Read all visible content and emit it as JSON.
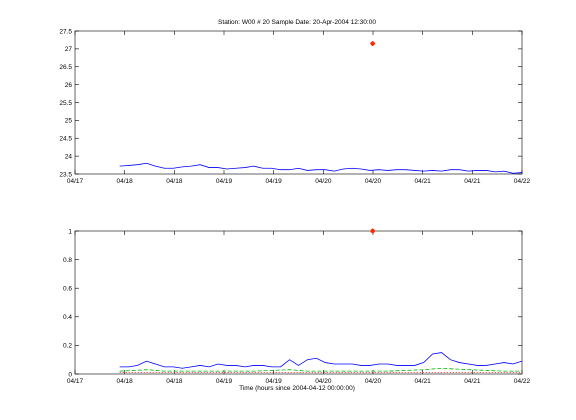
{
  "chart_data": [
    {
      "type": "line",
      "title": "Station: W00 # 20  Sample Date: 20-Apr-2004 12:30:00",
      "ylabel": "",
      "xlabel": "",
      "xlim": [
        0,
        5
      ],
      "ylim": [
        23.5,
        27.5
      ],
      "xtick_labels": [
        "04/17",
        "04/18",
        "04/18",
        "04/19",
        "04/19",
        "04/20",
        "04/20",
        "04/21",
        "04/21",
        "04/22"
      ],
      "ytick_labels": [
        "23.5",
        "24",
        "24.5",
        "25",
        "25.5",
        "26",
        "26.5",
        "27",
        "27.5"
      ],
      "yticks": [
        23.5,
        24,
        24.5,
        25,
        25.5,
        26,
        26.5,
        27,
        27.5
      ],
      "series": [
        {
          "color": "#0000ff",
          "style": "solid",
          "x": [
            0.5,
            0.6,
            0.7,
            0.8,
            0.9,
            1.0,
            1.1,
            1.2,
            1.3,
            1.4,
            1.5,
            1.6,
            1.7,
            1.8,
            1.9,
            2.0,
            2.1,
            2.2,
            2.3,
            2.4,
            2.5,
            2.6,
            2.7,
            2.8,
            2.9,
            3.0,
            3.1,
            3.2,
            3.3,
            3.4,
            3.5,
            3.6,
            3.7,
            3.8,
            3.9,
            4.0,
            4.1,
            4.2,
            4.3,
            4.4,
            4.5,
            4.6,
            4.7,
            4.8,
            4.9,
            5.0
          ],
          "y": [
            23.72,
            23.74,
            23.76,
            23.8,
            23.72,
            23.66,
            23.66,
            23.7,
            23.72,
            23.76,
            23.68,
            23.68,
            23.64,
            23.66,
            23.68,
            23.72,
            23.66,
            23.66,
            23.62,
            23.62,
            23.66,
            23.6,
            23.62,
            23.62,
            23.58,
            23.64,
            23.66,
            23.64,
            23.6,
            23.62,
            23.6,
            23.62,
            23.62,
            23.6,
            23.58,
            23.6,
            23.58,
            23.62,
            23.62,
            23.58,
            23.6,
            23.6,
            23.56,
            23.58,
            23.52,
            23.54
          ]
        }
      ],
      "markers": [
        {
          "x": 3.33,
          "y": 27.15,
          "color": "#ff2a00"
        }
      ]
    },
    {
      "type": "line",
      "title": "",
      "ylabel": "",
      "xlabel": "Time (hours since 2004-04-12 00:00:00)",
      "xlim": [
        0,
        5
      ],
      "ylim": [
        0,
        1
      ],
      "xtick_labels": [
        "04/17",
        "04/18",
        "04/18",
        "04/19",
        "04/19",
        "04/20",
        "04/20",
        "04/21",
        "04/21",
        "04/22"
      ],
      "ytick_labels": [
        "0",
        "0.2",
        "0.4",
        "0.6",
        "0.8",
        "1"
      ],
      "yticks": [
        0,
        0.2,
        0.4,
        0.6,
        0.8,
        1
      ],
      "series": [
        {
          "color": "#0000ff",
          "style": "solid",
          "x": [
            0.5,
            0.6,
            0.7,
            0.8,
            0.9,
            1.0,
            1.1,
            1.2,
            1.3,
            1.4,
            1.5,
            1.6,
            1.7,
            1.8,
            1.9,
            2.0,
            2.1,
            2.2,
            2.3,
            2.4,
            2.5,
            2.6,
            2.7,
            2.8,
            2.9,
            3.0,
            3.1,
            3.2,
            3.3,
            3.4,
            3.5,
            3.6,
            3.7,
            3.8,
            3.9,
            4.0,
            4.1,
            4.2,
            4.3,
            4.4,
            4.5,
            4.6,
            4.7,
            4.8,
            4.9,
            5.0
          ],
          "y": [
            0.05,
            0.05,
            0.06,
            0.09,
            0.07,
            0.05,
            0.05,
            0.04,
            0.05,
            0.06,
            0.05,
            0.07,
            0.06,
            0.06,
            0.05,
            0.06,
            0.06,
            0.05,
            0.05,
            0.1,
            0.06,
            0.1,
            0.11,
            0.08,
            0.07,
            0.07,
            0.07,
            0.06,
            0.06,
            0.07,
            0.07,
            0.06,
            0.06,
            0.06,
            0.08,
            0.14,
            0.15,
            0.1,
            0.08,
            0.07,
            0.06,
            0.06,
            0.07,
            0.08,
            0.07,
            0.09
          ]
        },
        {
          "color": "#00bb00",
          "style": "dashed",
          "x": [
            0.5,
            0.8,
            1.0,
            1.5,
            2.0,
            2.4,
            2.6,
            3.0,
            3.5,
            3.9,
            4.1,
            4.4,
            4.8,
            5.0
          ],
          "y": [
            0.02,
            0.03,
            0.02,
            0.02,
            0.02,
            0.03,
            0.02,
            0.02,
            0.02,
            0.03,
            0.04,
            0.03,
            0.02,
            0.02
          ]
        },
        {
          "color": "#ff0000",
          "style": "dotted",
          "x": [
            0.5,
            5.0
          ],
          "y": [
            0.01,
            0.01
          ]
        }
      ],
      "markers": [
        {
          "x": 3.33,
          "y": 1.0,
          "color": "#ff2a00"
        }
      ]
    }
  ]
}
